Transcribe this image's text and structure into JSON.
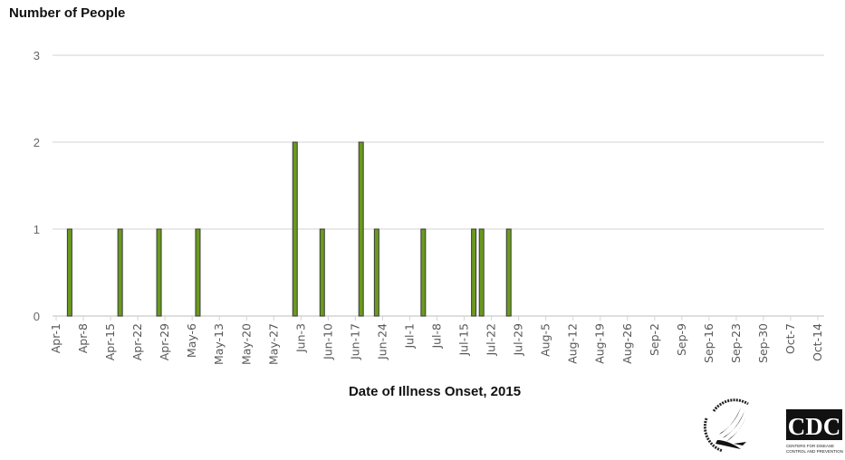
{
  "chart_data": {
    "type": "bar",
    "title": "",
    "ylabel": "Number of People",
    "xlabel": "Date of Illness Onset, 2015",
    "ylim": [
      0,
      3
    ],
    "yticks": [
      0,
      1,
      2,
      3
    ],
    "grid": true,
    "legend": null,
    "bar_color": "#6a9a1e",
    "bar_edge_color": "#3a3a3a",
    "x_tick_labels": [
      "Apr-1",
      "Apr-8",
      "Apr-15",
      "Apr-22",
      "Apr-29",
      "May-6",
      "May-13",
      "May-20",
      "May-27",
      "Jun-3",
      "Jun-10",
      "Jun-17",
      "Jun-24",
      "Jul-1",
      "Jul-8",
      "Jul-15",
      "Jul-22",
      "Jul-29",
      "Aug-5",
      "Aug-12",
      "Aug-19",
      "Aug-26",
      "Sep-2",
      "Sep-9",
      "Sep-16",
      "Sep-23",
      "Sep-30",
      "Oct-7",
      "Oct-14"
    ],
    "categories": [
      "Apr-4",
      "Apr-17",
      "Apr-27",
      "May-7",
      "Jun-1",
      "Jun-8",
      "Jun-18",
      "Jun-22",
      "Jul-4",
      "Jul-17",
      "Jul-19",
      "Jul-26"
    ],
    "day_offsets": [
      3,
      16,
      26,
      36,
      61,
      68,
      78,
      82,
      94,
      107,
      109,
      116
    ],
    "values": [
      1,
      1,
      1,
      1,
      2,
      1,
      2,
      1,
      1,
      1,
      1,
      1
    ]
  },
  "labels": {
    "y_axis_title": "Number of People",
    "x_axis_title": "Date of Illness Onset, 2015"
  },
  "logos": {
    "hhs": "Department of Health & Human Services USA",
    "cdc": "CDC",
    "cdc_sub1": "CENTERS FOR DISEASE",
    "cdc_sub2": "CONTROL AND PREVENTION"
  }
}
